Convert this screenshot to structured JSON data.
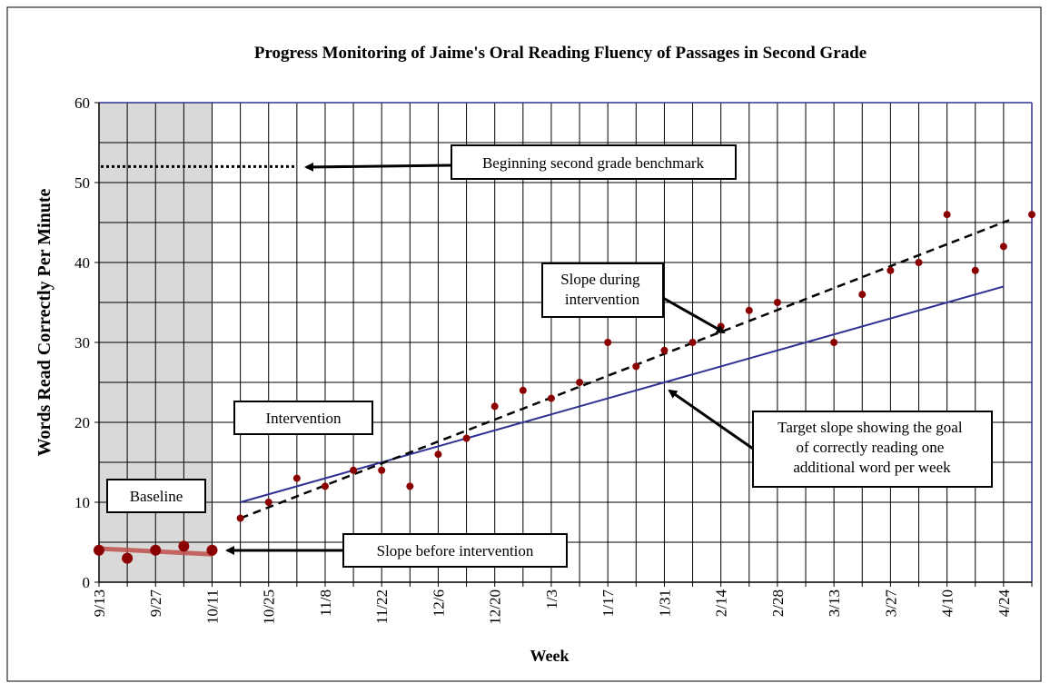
{
  "chart_data": {
    "type": "scatter",
    "title": "Progress Monitoring of Jaime's Oral Reading Fluency of Passages in Second Grade",
    "xlabel": "Week",
    "ylabel": "Words Read Correctly Per Minute",
    "ylim": [
      0,
      60
    ],
    "yticks": [
      0,
      10,
      20,
      30,
      40,
      50,
      60
    ],
    "week_count": 33,
    "x_tick_labels": [
      {
        "week": 0,
        "label": "9/13"
      },
      {
        "week": 2,
        "label": "9/27"
      },
      {
        "week": 4,
        "label": "10/11"
      },
      {
        "week": 6,
        "label": "10/25"
      },
      {
        "week": 8,
        "label": "11/8"
      },
      {
        "week": 10,
        "label": "11/22"
      },
      {
        "week": 12,
        "label": "12/6"
      },
      {
        "week": 14,
        "label": "12/20"
      },
      {
        "week": 16,
        "label": "1/3"
      },
      {
        "week": 18,
        "label": "1/17"
      },
      {
        "week": 20,
        "label": "1/31"
      },
      {
        "week": 22,
        "label": "2/14"
      },
      {
        "week": 24,
        "label": "2/28"
      },
      {
        "week": 26,
        "label": "3/13"
      },
      {
        "week": 28,
        "label": "3/27"
      },
      {
        "week": 30,
        "label": "4/10"
      },
      {
        "week": 32,
        "label": "4/24"
      }
    ],
    "grid": true,
    "baseline": {
      "label": "Baseline",
      "week_range": [
        0,
        4
      ],
      "shade_color": "#d9d9d9",
      "points": [
        {
          "week": 0,
          "value": 4
        },
        {
          "week": 1,
          "value": 3
        },
        {
          "week": 2,
          "value": 4
        },
        {
          "week": 3,
          "value": 4.5
        },
        {
          "week": 4,
          "value": 4
        }
      ],
      "trend": {
        "from": [
          0,
          4.2
        ],
        "to": [
          4,
          3.5
        ],
        "color": "#c0504d"
      }
    },
    "intervention": {
      "label": "Intervention",
      "points": [
        {
          "week": 5,
          "value": 8
        },
        {
          "week": 6,
          "value": 10
        },
        {
          "week": 7,
          "value": 13
        },
        {
          "week": 8,
          "value": 12
        },
        {
          "week": 9,
          "value": 14
        },
        {
          "week": 10,
          "value": 14
        },
        {
          "week": 11,
          "value": 12
        },
        {
          "week": 12,
          "value": 16
        },
        {
          "week": 13,
          "value": 18
        },
        {
          "week": 14,
          "value": 22
        },
        {
          "week": 15,
          "value": 24
        },
        {
          "week": 16,
          "value": 23
        },
        {
          "week": 17,
          "value": 25
        },
        {
          "week": 18,
          "value": 30
        },
        {
          "week": 19,
          "value": 27
        },
        {
          "week": 20,
          "value": 29
        },
        {
          "week": 21,
          "value": 30
        },
        {
          "week": 22,
          "value": 32
        },
        {
          "week": 23,
          "value": 34
        },
        {
          "week": 24,
          "value": 35
        },
        {
          "week": 26,
          "value": 30
        },
        {
          "week": 27,
          "value": 36
        },
        {
          "week": 28,
          "value": 39
        },
        {
          "week": 29,
          "value": 40
        },
        {
          "week": 30,
          "value": 46
        },
        {
          "week": 31,
          "value": 39
        },
        {
          "week": 32,
          "value": 42
        },
        {
          "week": 33,
          "value": 46
        }
      ],
      "point_color": "#8b0000"
    },
    "benchmark_line": {
      "value": 52,
      "week_range": [
        0,
        7
      ],
      "style": "dotted",
      "color": "#000000"
    },
    "intervention_trend": {
      "from": [
        5,
        8
      ],
      "to": [
        32.2,
        45.3
      ],
      "style": "dashed",
      "color": "#000000"
    },
    "target_line": {
      "from": [
        5,
        10
      ],
      "to": [
        32,
        37
      ],
      "color": "#2e3192"
    },
    "annotations": [
      {
        "text": "Beginning second grade benchmark"
      },
      {
        "text": "Slope during intervention"
      },
      {
        "text": "Target slope showing the goal of correctly reading one additional word per week"
      },
      {
        "text": "Slope before intervention"
      },
      {
        "text": "Intervention"
      },
      {
        "text": "Baseline"
      }
    ]
  }
}
